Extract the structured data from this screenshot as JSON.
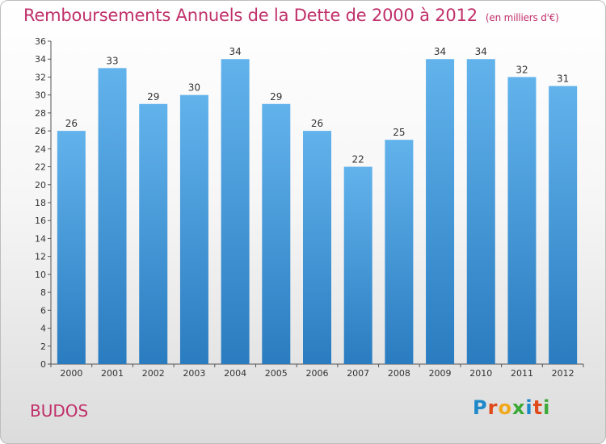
{
  "header": {
    "title": "Remboursements Annuels de la Dette de 2000 à 2012",
    "unit_note": "(en milliers d'€)"
  },
  "footer": {
    "place_name": "BUDOS",
    "logo_text": "Proxiti"
  },
  "colors": {
    "title": "#c0306a",
    "bar_top": "#62b3ec",
    "bar_bottom": "#2a7cc0",
    "logo": [
      "#1e88c9",
      "#e04a1a",
      "#f2a81b",
      "#3aa935",
      "#1e88c9",
      "#e04a1a",
      "#3aa935"
    ]
  },
  "chart_data": {
    "type": "bar",
    "title": "Remboursements Annuels de la Dette de 2000 à 2012",
    "xlabel": "",
    "ylabel": "",
    "categories": [
      "2000",
      "2001",
      "2002",
      "2003",
      "2004",
      "2005",
      "2006",
      "2007",
      "2008",
      "2009",
      "2010",
      "2011",
      "2012"
    ],
    "values": [
      26,
      33,
      29,
      30,
      34,
      29,
      26,
      22,
      25,
      34,
      34,
      32,
      31
    ],
    "ylim": [
      0,
      36
    ],
    "ytick_step": 2,
    "grid": false,
    "data_labels": true
  }
}
